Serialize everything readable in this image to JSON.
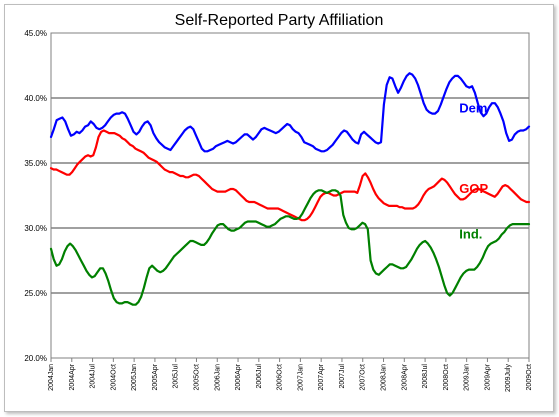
{
  "chart_data": {
    "type": "line",
    "title": "Self-Reported Party Affiliation",
    "xlabel": "",
    "ylabel": "",
    "ylim": [
      20,
      45
    ],
    "y_ticks": [
      "20.0%",
      "25.0%",
      "30.0%",
      "35.0%",
      "40.0%",
      "45.0%"
    ],
    "grid": "horizontal",
    "x_tick_labels": [
      "2004Jan",
      "2004Apr",
      "2004Jul",
      "2004Oct",
      "2005Jan",
      "2005Apr",
      "2005Jul",
      "2005Oct",
      "2006Jan",
      "2006Apr",
      "2006Jul",
      "2006Oct",
      "2007Jan",
      "2007Apr",
      "2007Jul",
      "2007Oct",
      "2008Jan",
      "2008Apr",
      "2008Jul",
      "2008Oct",
      "2009Jan",
      "2009Apr",
      "2009July",
      "2009Oct"
    ],
    "series": [
      {
        "name": "Dem",
        "color": "#0000ff",
        "label_pos": [
          41,
          38.9
        ],
        "values": [
          37.0,
          37.6,
          38.3,
          38.4,
          38.5,
          38.2,
          37.6,
          37.1,
          37.2,
          37.4,
          37.3,
          37.5,
          37.8,
          37.9,
          38.2,
          38.0,
          37.7,
          37.6,
          37.7,
          37.9,
          38.2,
          38.5,
          38.7,
          38.8,
          38.8,
          38.9,
          38.8,
          38.4,
          37.9,
          37.4,
          37.2,
          37.4,
          37.8,
          38.1,
          38.2,
          37.9,
          37.3,
          36.9,
          36.6,
          36.4,
          36.2,
          36.1,
          36.0,
          36.3,
          36.6,
          36.9,
          37.2,
          37.5,
          37.7,
          37.8,
          37.6,
          37.1,
          36.6,
          36.1,
          35.9,
          35.9,
          36.0,
          36.1,
          36.3,
          36.4,
          36.5,
          36.6,
          36.7,
          36.6,
          36.5,
          36.6,
          36.8,
          37.0,
          37.2,
          37.2,
          37.0,
          36.8,
          37.0,
          37.3,
          37.6,
          37.7,
          37.6,
          37.5,
          37.4,
          37.3,
          37.4,
          37.6,
          37.8,
          38.0,
          37.9,
          37.6,
          37.4,
          37.3,
          37.0,
          36.6,
          36.5,
          36.4,
          36.3,
          36.1,
          36.0,
          35.9,
          35.9,
          36.0,
          36.2,
          36.4,
          36.7,
          37.0,
          37.3,
          37.5,
          37.4,
          37.1,
          36.8,
          36.6,
          36.5,
          37.2,
          37.4,
          37.2,
          37.0,
          36.8,
          36.6,
          36.5,
          36.6,
          39.5,
          41.0,
          41.6,
          41.5,
          40.9,
          40.4,
          40.8,
          41.3,
          41.7,
          41.9,
          41.8,
          41.5,
          41.0,
          40.3,
          39.6,
          39.1,
          38.9,
          38.8,
          38.8,
          39.0,
          39.5,
          40.1,
          40.7,
          41.2,
          41.5,
          41.7,
          41.7,
          41.5,
          41.2,
          40.9,
          40.8,
          40.9,
          40.4,
          39.6,
          38.9,
          38.6,
          38.8,
          39.3,
          39.6,
          39.6,
          39.3,
          38.8,
          38.2,
          37.3,
          36.7,
          36.8,
          37.2,
          37.4,
          37.5,
          37.5,
          37.6,
          37.8
        ]
      },
      {
        "name": "GOP",
        "color": "#ff0000",
        "label_pos": [
          41,
          32.7
        ],
        "values": [
          34.6,
          34.5,
          34.5,
          34.4,
          34.3,
          34.2,
          34.1,
          34.1,
          34.3,
          34.6,
          34.9,
          35.1,
          35.3,
          35.5,
          35.6,
          35.5,
          35.6,
          36.2,
          37.0,
          37.4,
          37.5,
          37.4,
          37.3,
          37.3,
          37.3,
          37.2,
          37.1,
          36.9,
          36.8,
          36.6,
          36.4,
          36.3,
          36.1,
          36.0,
          35.9,
          35.8,
          35.6,
          35.4,
          35.3,
          35.2,
          35.1,
          34.9,
          34.7,
          34.5,
          34.4,
          34.3,
          34.3,
          34.2,
          34.1,
          34.0,
          34.0,
          33.9,
          33.9,
          34.0,
          34.1,
          34.1,
          34.0,
          33.8,
          33.6,
          33.4,
          33.2,
          33.0,
          32.9,
          32.8,
          32.8,
          32.8,
          32.8,
          32.9,
          33.0,
          33.0,
          32.9,
          32.7,
          32.5,
          32.3,
          32.1,
          32.0,
          32.0,
          32.0,
          31.9,
          31.8,
          31.7,
          31.6,
          31.5,
          31.5,
          31.5,
          31.5,
          31.5,
          31.4,
          31.3,
          31.2,
          31.1,
          31.0,
          30.9,
          30.8,
          30.7,
          30.6,
          30.6,
          30.7,
          30.9,
          31.2,
          31.6,
          32.0,
          32.4,
          32.6,
          32.7,
          32.7,
          32.6,
          32.5,
          32.5,
          32.6,
          32.7,
          32.8,
          32.8,
          32.8,
          32.8,
          32.8,
          32.7,
          33.3,
          34.0,
          34.2,
          33.9,
          33.5,
          33.0,
          32.6,
          32.3,
          32.1,
          31.9,
          31.8,
          31.7,
          31.7,
          31.7,
          31.7,
          31.6,
          31.6,
          31.5,
          31.5,
          31.5,
          31.5,
          31.6,
          31.8,
          32.1,
          32.5,
          32.8,
          33.0,
          33.1,
          33.2,
          33.4,
          33.6,
          33.8,
          33.7,
          33.5,
          33.2,
          32.9,
          32.6,
          32.4,
          32.2,
          32.2,
          32.3,
          32.5,
          32.7,
          32.9,
          33.0,
          33.0,
          32.9,
          32.8,
          32.7,
          32.6,
          32.5,
          32.4,
          32.6,
          32.9,
          33.2,
          33.3,
          33.2,
          33.0,
          32.8,
          32.6,
          32.4,
          32.2,
          32.1,
          32.0,
          32.0
        ]
      },
      {
        "name": "Ind.",
        "color": "#008000",
        "label_pos": [
          41,
          29.2
        ],
        "values": [
          28.4,
          27.6,
          27.1,
          27.2,
          27.6,
          28.2,
          28.6,
          28.8,
          28.6,
          28.3,
          27.9,
          27.5,
          27.1,
          26.7,
          26.4,
          26.2,
          26.3,
          26.6,
          26.9,
          26.9,
          26.5,
          25.9,
          25.2,
          24.6,
          24.3,
          24.2,
          24.2,
          24.3,
          24.3,
          24.2,
          24.1,
          24.1,
          24.3,
          24.7,
          25.4,
          26.2,
          26.9,
          27.1,
          26.9,
          26.7,
          26.6,
          26.7,
          26.9,
          27.2,
          27.5,
          27.8,
          28.0,
          28.2,
          28.4,
          28.6,
          28.8,
          29.0,
          29.0,
          28.9,
          28.8,
          28.7,
          28.7,
          28.9,
          29.2,
          29.6,
          29.9,
          30.2,
          30.3,
          30.3,
          30.1,
          29.9,
          29.8,
          29.8,
          29.9,
          30.0,
          30.2,
          30.4,
          30.5,
          30.5,
          30.5,
          30.5,
          30.4,
          30.3,
          30.2,
          30.1,
          30.1,
          30.2,
          30.3,
          30.5,
          30.7,
          30.8,
          30.9,
          30.9,
          30.8,
          30.7,
          30.7,
          30.8,
          31.1,
          31.5,
          31.9,
          32.3,
          32.6,
          32.8,
          32.9,
          32.9,
          32.8,
          32.7,
          32.8,
          32.9,
          32.9,
          32.8,
          32.5,
          31.0,
          30.4,
          30.0,
          29.9,
          29.9,
          30.0,
          30.2,
          30.4,
          30.3,
          29.9,
          27.5,
          26.8,
          26.5,
          26.4,
          26.6,
          26.8,
          27.0,
          27.2,
          27.2,
          27.1,
          27.0,
          26.9,
          26.9,
          27.0,
          27.3,
          27.6,
          28.0,
          28.4,
          28.7,
          28.9,
          29.0,
          28.8,
          28.5,
          28.1,
          27.6,
          27.0,
          26.3,
          25.6,
          25.0,
          24.8,
          25.0,
          25.4,
          25.8,
          26.2,
          26.5,
          26.7,
          26.8,
          26.8,
          26.8,
          27.0,
          27.3,
          27.7,
          28.2,
          28.6,
          28.8,
          28.9,
          29.0,
          29.2,
          29.5,
          29.7,
          30.0,
          30.2,
          30.3,
          30.3,
          30.3,
          30.3,
          30.3,
          30.3,
          30.3
        ]
      }
    ]
  }
}
